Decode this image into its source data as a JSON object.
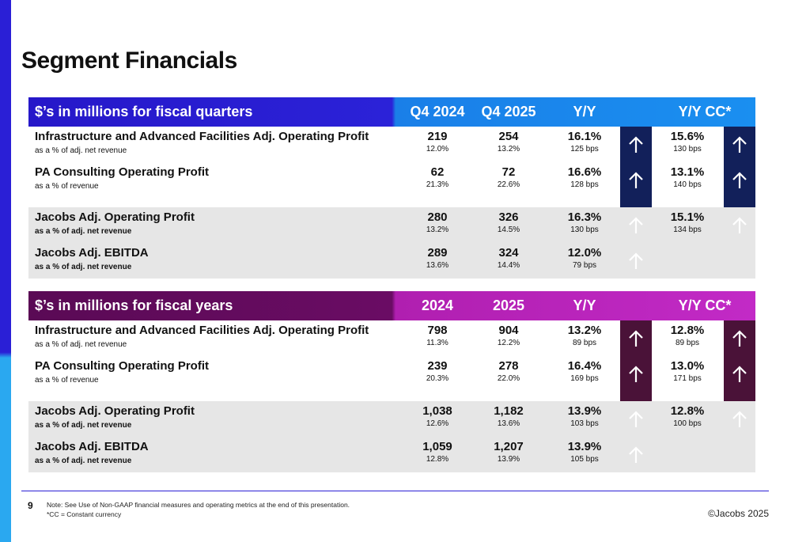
{
  "title": "Segment Financials",
  "quarters": {
    "header": {
      "label": "$’s in millions for fiscal quarters",
      "c1": "Q4 2024",
      "c2": "Q4 2025",
      "c3": "Y/Y",
      "c4": "Y/Y CC*"
    },
    "rows": [
      {
        "name": "Infrastructure and Advanced Facilities Adj. Operating Profit",
        "sub": "as a % of adj. net revenue",
        "v1": "219",
        "s1": "12.0%",
        "v2": "254",
        "s2": "13.2%",
        "v3": "16.1%",
        "s3": "125 bps",
        "v4": "15.6%",
        "s4": "130 bps"
      },
      {
        "name": "PA Consulting Operating Profit",
        "sub": "as a % of revenue",
        "v1": "62",
        "s1": "21.3%",
        "v2": "72",
        "s2": "22.6%",
        "v3": "16.6%",
        "s3": "128 bps",
        "v4": "13.1%",
        "s4": "140 bps"
      },
      {
        "name": "Jacobs Adj. Operating Profit",
        "sub": "as a % of adj. net revenue",
        "v1": "280",
        "s1": "13.2%",
        "v2": "326",
        "s2": "14.5%",
        "v3": "16.3%",
        "s3": "130 bps",
        "v4": "15.1%",
        "s4": "134 bps"
      },
      {
        "name": "Jacobs Adj. EBITDA",
        "sub": "as a % of adj. net revenue",
        "v1": "289",
        "s1": "13.6%",
        "v2": "324",
        "s2": "14.4%",
        "v3": "12.0%",
        "s3": "79 bps"
      }
    ]
  },
  "years": {
    "header": {
      "label": "$’s in millions for fiscal years",
      "c1": "2024",
      "c2": "2025",
      "c3": "Y/Y",
      "c4": "Y/Y CC*"
    },
    "rows": [
      {
        "name": "Infrastructure and Advanced Facilities Adj. Operating Profit",
        "sub": "as a % of adj. net revenue",
        "v1": "798",
        "s1": "11.3%",
        "v2": "904",
        "s2": "12.2%",
        "v3": "13.2%",
        "s3": "89 bps",
        "v4": "12.8%",
        "s4": "89 bps"
      },
      {
        "name": "PA Consulting Operating Profit",
        "sub": "as a % of revenue",
        "v1": "239",
        "s1": "20.3%",
        "v2": "278",
        "s2": "22.0%",
        "v3": "16.4%",
        "s3": "169 bps",
        "v4": "13.0%",
        "s4": "171 bps"
      },
      {
        "name": "Jacobs Adj. Operating Profit",
        "sub": "as a % of adj. net revenue",
        "v1": "1,038",
        "s1": "12.6%",
        "v2": "1,182",
        "s2": "13.6%",
        "v3": "13.9%",
        "s3": "103 bps",
        "v4": "12.8%",
        "s4": "100 bps"
      },
      {
        "name": "Jacobs Adj. EBITDA",
        "sub": "as a % of adj. net revenue",
        "v1": "1,059",
        "s1": "12.8%",
        "v2": "1,207",
        "s2": "13.9%",
        "v3": "13.9%",
        "s3": "105 bps"
      }
    ]
  },
  "footer": {
    "page": "9",
    "note1": "Note: See Use of Non-GAAP financial measures and operating metrics at the end of this presentation.",
    "note2": "*CC = Constant currency",
    "copyright": "©Jacobs 2025"
  },
  "icons": [
    "up-arrow-icon"
  ],
  "colors": {
    "quarter_header": "#2b22d8",
    "quarter_arrow_col": "#12205a",
    "year_header": "#6a0c64",
    "year_arrow_col": "#4a1238",
    "grey_rows": "#e6e6e6"
  }
}
